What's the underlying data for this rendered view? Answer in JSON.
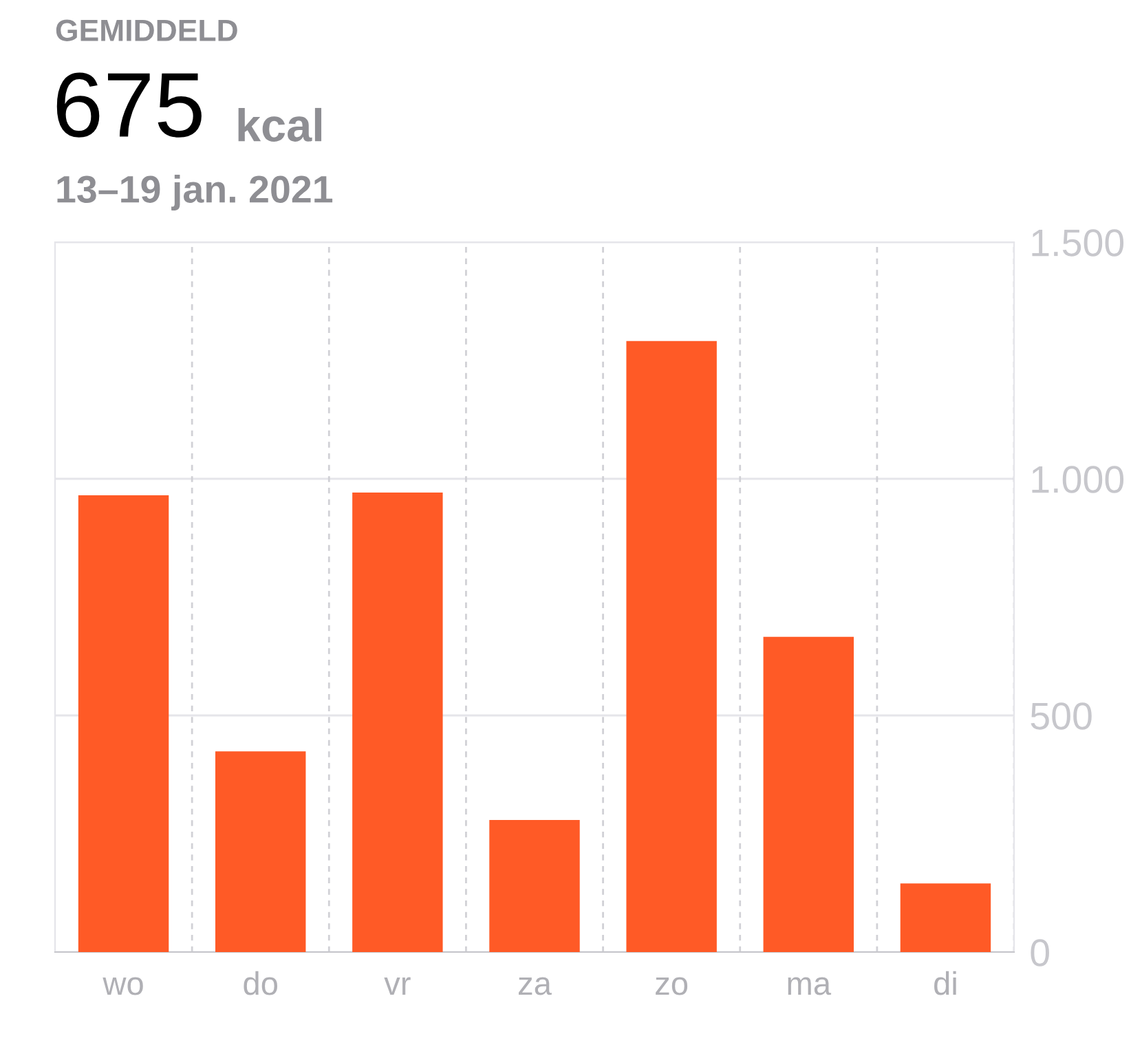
{
  "chart_data": {
    "type": "bar",
    "title": "GEMIDDELD",
    "subtitle": "13–19 jan. 2021",
    "annotations": [
      "675",
      "kcal"
    ],
    "categories": [
      "wo",
      "do",
      "vr",
      "za",
      "zo",
      "ma",
      "di"
    ],
    "values": [
      965,
      424,
      971,
      279,
      1291,
      666,
      145
    ],
    "color": "#ff5a26",
    "ylim": [
      0,
      1500
    ],
    "yticks": [
      {
        "value": 0,
        "label": "0"
      },
      {
        "value": 500,
        "label": "500"
      },
      {
        "value": 1000,
        "label": "1.000"
      },
      {
        "value": 1500,
        "label": "1.500"
      }
    ],
    "grid": true,
    "legend": false
  }
}
